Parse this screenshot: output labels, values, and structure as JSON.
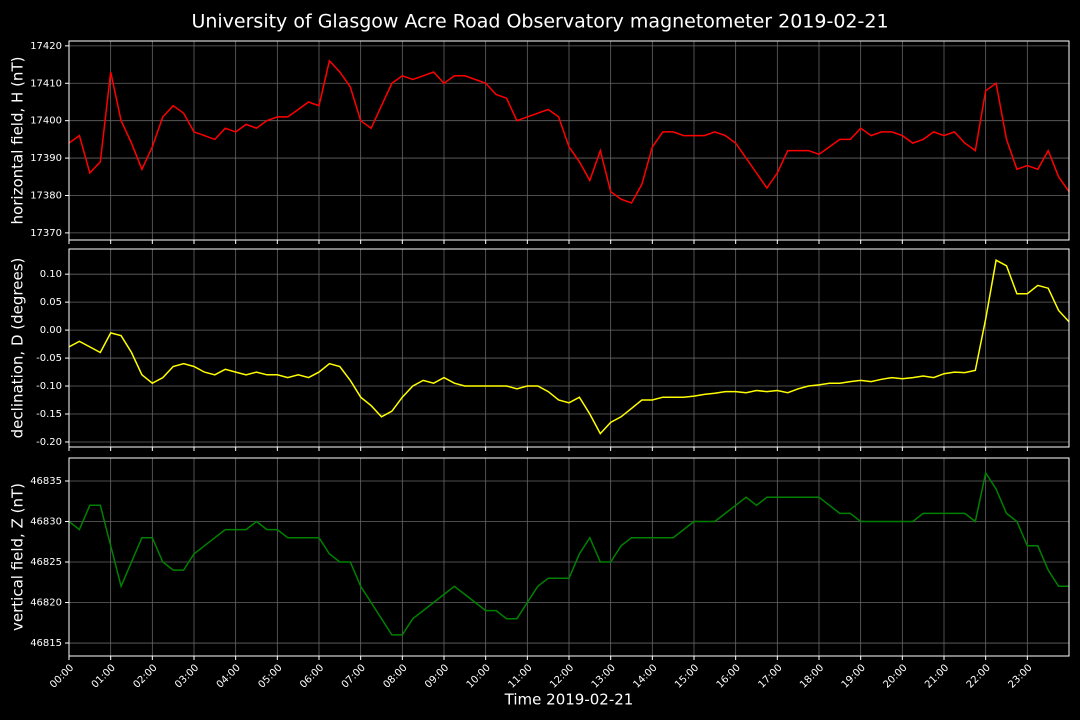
{
  "title": "University of Glasgow Acre Road Observatory magnetometer 2019-02-21",
  "chart_data": [
    {
      "type": "line",
      "ylabel": "horizontal field, H (nT)",
      "color": "#ff0000",
      "grid": true,
      "xlim": [
        0,
        24
      ],
      "xticks": [
        0,
        1,
        2,
        3,
        4,
        5,
        6,
        7,
        8,
        9,
        10,
        11,
        12,
        13,
        14,
        15,
        16,
        17,
        18,
        19,
        20,
        21,
        22,
        23
      ],
      "ylim": [
        17368.1,
        17421.3
      ],
      "yticks": [
        17370,
        17380,
        17390,
        17400,
        17410,
        17420
      ],
      "x": [
        0,
        0.25,
        0.5,
        0.75,
        1,
        1.25,
        1.5,
        1.75,
        2,
        2.25,
        2.5,
        2.75,
        3,
        3.25,
        3.5,
        3.75,
        4,
        4.25,
        4.5,
        4.75,
        5,
        5.25,
        5.5,
        5.75,
        6,
        6.25,
        6.5,
        6.75,
        7,
        7.25,
        7.5,
        7.75,
        8,
        8.25,
        8.5,
        8.75,
        9,
        9.25,
        9.5,
        9.75,
        10,
        10.25,
        10.5,
        10.75,
        11,
        11.25,
        11.5,
        11.75,
        12,
        12.25,
        12.5,
        12.75,
        13,
        13.25,
        13.5,
        13.75,
        14,
        14.25,
        14.5,
        14.75,
        15,
        15.25,
        15.5,
        15.75,
        16,
        16.25,
        16.5,
        16.75,
        17,
        17.25,
        17.5,
        17.75,
        18,
        18.25,
        18.5,
        18.75,
        19,
        19.25,
        19.5,
        19.75,
        20,
        20.25,
        20.5,
        20.75,
        21,
        21.25,
        21.5,
        21.75,
        22,
        22.25,
        22.5,
        22.75,
        23,
        23.25,
        23.5,
        23.75,
        24
      ],
      "values": [
        17394,
        17396,
        17386,
        17389,
        17413,
        17400,
        17394,
        17387,
        17393,
        17401,
        17404,
        17402,
        17397,
        17396,
        17395,
        17398,
        17397,
        17399,
        17398,
        17400,
        17401,
        17401,
        17403,
        17405,
        17404,
        17416,
        17413,
        17409,
        17400,
        17398,
        17404,
        17410,
        17412,
        17411,
        17412,
        17413,
        17410,
        17412,
        17412,
        17411,
        17410,
        17407,
        17406,
        17400,
        17401,
        17402,
        17403,
        17401,
        17393,
        17389,
        17384,
        17392,
        17381,
        17379,
        17378,
        17383,
        17393,
        17397,
        17397,
        17396,
        17396,
        17396,
        17397,
        17396,
        17394,
        17390,
        17386,
        17382,
        17386,
        17392,
        17392,
        17392,
        17391,
        17393,
        17395,
        17395,
        17398,
        17396,
        17397,
        17397,
        17396,
        17394,
        17395,
        17397,
        17396,
        17397,
        17394,
        17392,
        17408,
        17410,
        17395,
        17387,
        17388,
        17387,
        17392,
        17385,
        17381
      ]
    },
    {
      "type": "line",
      "ylabel": "declination, D (degrees)",
      "color": "#ffff00",
      "grid": true,
      "xlim": [
        0,
        24
      ],
      "xticks": [
        0,
        1,
        2,
        3,
        4,
        5,
        6,
        7,
        8,
        9,
        10,
        11,
        12,
        13,
        14,
        15,
        16,
        17,
        18,
        19,
        20,
        21,
        22,
        23
      ],
      "ylim": [
        -0.209,
        0.145
      ],
      "yticks": [
        {
          "value": -0.2,
          "label": "-0.20"
        },
        {
          "value": -0.15,
          "label": "-0.15"
        },
        {
          "value": -0.1,
          "label": "-0.10"
        },
        {
          "value": -0.05,
          "label": "-0.05"
        },
        {
          "value": 0,
          "label": "0.00"
        },
        {
          "value": 0.05,
          "label": "0.05"
        },
        {
          "value": 0.1,
          "label": "0.10"
        }
      ],
      "x": [
        0,
        0.25,
        0.5,
        0.75,
        1,
        1.25,
        1.5,
        1.75,
        2,
        2.25,
        2.5,
        2.75,
        3,
        3.25,
        3.5,
        3.75,
        4,
        4.25,
        4.5,
        4.75,
        5,
        5.25,
        5.5,
        5.75,
        6,
        6.25,
        6.5,
        6.75,
        7,
        7.25,
        7.5,
        7.75,
        8,
        8.25,
        8.5,
        8.75,
        9,
        9.25,
        9.5,
        9.75,
        10,
        10.25,
        10.5,
        10.75,
        11,
        11.25,
        11.5,
        11.75,
        12,
        12.25,
        12.5,
        12.75,
        13,
        13.25,
        13.5,
        13.75,
        14,
        14.25,
        14.5,
        14.75,
        15,
        15.25,
        15.5,
        15.75,
        16,
        16.25,
        16.5,
        16.75,
        17,
        17.25,
        17.5,
        17.75,
        18,
        18.25,
        18.5,
        18.75,
        19,
        19.25,
        19.5,
        19.75,
        20,
        20.25,
        20.5,
        20.75,
        21,
        21.25,
        21.5,
        21.75,
        22,
        22.25,
        22.5,
        22.75,
        23,
        23.25,
        23.5,
        23.75,
        24
      ],
      "values": [
        -0.03,
        -0.02,
        -0.03,
        -0.04,
        -0.005,
        -0.01,
        -0.04,
        -0.08,
        -0.095,
        -0.085,
        -0.065,
        -0.06,
        -0.065,
        -0.075,
        -0.08,
        -0.07,
        -0.075,
        -0.08,
        -0.075,
        -0.08,
        -0.08,
        -0.085,
        -0.08,
        -0.085,
        -0.075,
        -0.06,
        -0.065,
        -0.09,
        -0.12,
        -0.135,
        -0.155,
        -0.145,
        -0.12,
        -0.1,
        -0.09,
        -0.095,
        -0.085,
        -0.095,
        -0.1,
        -0.1,
        -0.1,
        -0.1,
        -0.1,
        -0.105,
        -0.1,
        -0.1,
        -0.11,
        -0.125,
        -0.13,
        -0.12,
        -0.15,
        -0.185,
        -0.165,
        -0.155,
        -0.14,
        -0.125,
        -0.125,
        -0.12,
        -0.12,
        -0.12,
        -0.118,
        -0.115,
        -0.113,
        -0.11,
        -0.11,
        -0.112,
        -0.108,
        -0.11,
        -0.108,
        -0.112,
        -0.105,
        -0.1,
        -0.098,
        -0.095,
        -0.095,
        -0.092,
        -0.09,
        -0.092,
        -0.088,
        -0.085,
        -0.087,
        -0.085,
        -0.082,
        -0.085,
        -0.078,
        -0.075,
        -0.076,
        -0.072,
        0.02,
        0.125,
        0.115,
        0.065,
        0.065,
        0.08,
        0.075,
        0.035,
        0.015
      ]
    },
    {
      "type": "line",
      "ylabel": "vertical field, Z (nT)",
      "xlabel": "Time 2019-02-21",
      "color": "#008000",
      "grid": true,
      "xlim": [
        0,
        24
      ],
      "xticks": [
        {
          "value": 0,
          "label": "00:00"
        },
        {
          "value": 1,
          "label": "01:00"
        },
        {
          "value": 2,
          "label": "02:00"
        },
        {
          "value": 3,
          "label": "03:00"
        },
        {
          "value": 4,
          "label": "04:00"
        },
        {
          "value": 5,
          "label": "05:00"
        },
        {
          "value": 6,
          "label": "06:00"
        },
        {
          "value": 7,
          "label": "07:00"
        },
        {
          "value": 8,
          "label": "08:00"
        },
        {
          "value": 9,
          "label": "09:00"
        },
        {
          "value": 10,
          "label": "10:00"
        },
        {
          "value": 11,
          "label": "11:00"
        },
        {
          "value": 12,
          "label": "12:00"
        },
        {
          "value": 13,
          "label": "13:00"
        },
        {
          "value": 14,
          "label": "14:00"
        },
        {
          "value": 15,
          "label": "15:00"
        },
        {
          "value": 16,
          "label": "16:00"
        },
        {
          "value": 17,
          "label": "17:00"
        },
        {
          "value": 18,
          "label": "18:00"
        },
        {
          "value": 19,
          "label": "19:00"
        },
        {
          "value": 20,
          "label": "20:00"
        },
        {
          "value": 21,
          "label": "21:00"
        },
        {
          "value": 22,
          "label": "22:00"
        },
        {
          "value": 23,
          "label": "23:00"
        }
      ],
      "ylim": [
        46813.4,
        46837.84
      ],
      "yticks": [
        46815,
        46820,
        46825,
        46830,
        46835
      ],
      "x": [
        0,
        0.25,
        0.5,
        0.75,
        1,
        1.25,
        1.5,
        1.75,
        2,
        2.25,
        2.5,
        2.75,
        3,
        3.25,
        3.5,
        3.75,
        4,
        4.25,
        4.5,
        4.75,
        5,
        5.25,
        5.5,
        5.75,
        6,
        6.25,
        6.5,
        6.75,
        7,
        7.25,
        7.5,
        7.75,
        8,
        8.25,
        8.5,
        8.75,
        9,
        9.25,
        9.5,
        9.75,
        10,
        10.25,
        10.5,
        10.75,
        11,
        11.25,
        11.5,
        11.75,
        12,
        12.25,
        12.5,
        12.75,
        13,
        13.25,
        13.5,
        13.75,
        14,
        14.25,
        14.5,
        14.75,
        15,
        15.25,
        15.5,
        15.75,
        16,
        16.25,
        16.5,
        16.75,
        17,
        17.25,
        17.5,
        17.75,
        18,
        18.25,
        18.5,
        18.75,
        19,
        19.25,
        19.5,
        19.75,
        20,
        20.25,
        20.5,
        20.75,
        21,
        21.25,
        21.5,
        21.75,
        22,
        22.25,
        22.5,
        22.75,
        23,
        23.25,
        23.5,
        23.75,
        24
      ],
      "values": [
        46830,
        46829,
        46832,
        46832,
        46827,
        46822,
        46825,
        46828,
        46828,
        46825,
        46824,
        46824,
        46826,
        46827,
        46828,
        46829,
        46829,
        46829,
        46830,
        46829,
        46829,
        46828,
        46828,
        46828,
        46828,
        46826,
        46825,
        46825,
        46822,
        46820,
        46818,
        46816,
        46816,
        46818,
        46819,
        46820,
        46821,
        46822,
        46821,
        46820,
        46819,
        46819,
        46818,
        46818,
        46820,
        46822,
        46823,
        46823,
        46823,
        46826,
        46828,
        46825,
        46825,
        46827,
        46828,
        46828,
        46828,
        46828,
        46828,
        46829,
        46830,
        46830,
        46830,
        46831,
        46832,
        46833,
        46832,
        46833,
        46833,
        46833,
        46833,
        46833,
        46833,
        46832,
        46831,
        46831,
        46830,
        46830,
        46830,
        46830,
        46830,
        46830,
        46831,
        46831,
        46831,
        46831,
        46831,
        46830,
        46836,
        46834,
        46831,
        46830,
        46827,
        46827,
        46824,
        46822,
        46822
      ]
    }
  ]
}
